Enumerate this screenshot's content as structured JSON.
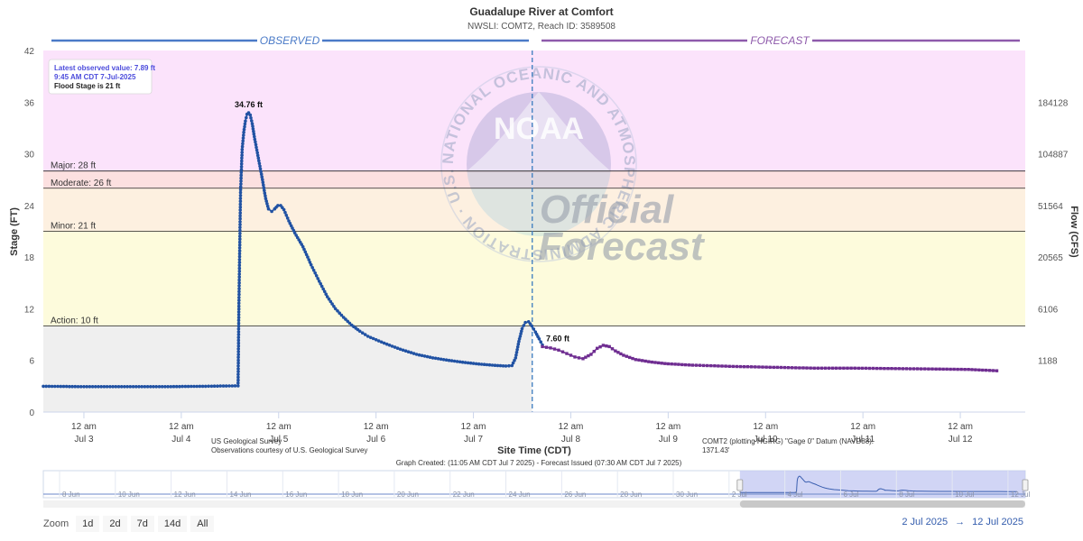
{
  "chart_data": {
    "type": "line",
    "title": "Guadalupe River at Comfort",
    "subtitle": "NWSLI: COMT2, Reach ID: 3589508",
    "ylabel": "Stage (FT)",
    "y2label": "Flow (CFS)",
    "xlabel": "Site Time (CDT)",
    "ylim": [
      0,
      42
    ],
    "xlim_hours": [
      0,
      242
    ],
    "y_ticks": [
      "0",
      "6",
      "12",
      "18",
      "24",
      "30",
      "36",
      "42"
    ],
    "y2_ticks": [
      {
        "stage": 6,
        "label": "1188"
      },
      {
        "stage": 12,
        "label": "6106"
      },
      {
        "stage": 18,
        "label": "20565"
      },
      {
        "stage": 24,
        "label": "51564"
      },
      {
        "stage": 30,
        "label": "104887"
      },
      {
        "stage": 36,
        "label": "184128"
      }
    ],
    "x_ticks": [
      {
        "hour": 10,
        "top": "12 am",
        "bottom": "Jul 3"
      },
      {
        "hour": 34,
        "top": "12 am",
        "bottom": "Jul 4"
      },
      {
        "hour": 58,
        "top": "12 am",
        "bottom": "Jul 5"
      },
      {
        "hour": 82,
        "top": "12 am",
        "bottom": "Jul 6"
      },
      {
        "hour": 106,
        "top": "12 am",
        "bottom": "Jul 7"
      },
      {
        "hour": 130,
        "top": "12 am",
        "bottom": "Jul 8"
      },
      {
        "hour": 154,
        "top": "12 am",
        "bottom": "Jul 9"
      },
      {
        "hour": 178,
        "top": "12 am",
        "bottom": "Jul 10"
      },
      {
        "hour": 202,
        "top": "12 am",
        "bottom": "Jul 11"
      },
      {
        "hour": 226,
        "top": "12 am",
        "bottom": "Jul 12"
      }
    ],
    "flood_categories": [
      {
        "name": "Major",
        "label": "Major: 28 ft",
        "stage": 28,
        "color": "#fbe3fb"
      },
      {
        "name": "Moderate",
        "label": "Moderate: 26 ft",
        "stage": 26,
        "color": "#fce0e0"
      },
      {
        "name": "Minor",
        "label": "Minor: 21 ft",
        "stage": 21,
        "color": "#fdf0e0"
      },
      {
        "name": "Action",
        "label": "Action: 10 ft",
        "stage": 10,
        "color": "#fdfbdc"
      }
    ],
    "below_action_color": "#efefef",
    "grid": false,
    "observed_label": "OBSERVED",
    "forecast_label": "FORECAST",
    "now_hour": 120.5,
    "series": [
      {
        "name": "Observed",
        "color": "#2152a3",
        "points": [
          [
            0,
            3.0
          ],
          [
            10,
            2.95
          ],
          [
            20,
            2.95
          ],
          [
            30,
            2.95
          ],
          [
            40,
            3.0
          ],
          [
            48,
            3.05
          ],
          [
            48.2,
            12.3
          ],
          [
            48.6,
            25.5
          ],
          [
            49.0,
            30.5
          ],
          [
            49.4,
            32.5
          ],
          [
            49.8,
            33.8
          ],
          [
            50.2,
            34.6
          ],
          [
            50.6,
            34.76
          ],
          [
            51.0,
            34.5
          ],
          [
            51.5,
            33.5
          ],
          [
            52,
            32.0
          ],
          [
            53,
            29.5
          ],
          [
            54,
            27.0
          ],
          [
            54.8,
            24.8
          ],
          [
            55.5,
            23.6
          ],
          [
            56.3,
            23.3
          ],
          [
            57.0,
            23.6
          ],
          [
            57.8,
            24.0
          ],
          [
            58.5,
            24.0
          ],
          [
            59.3,
            23.5
          ],
          [
            60.5,
            22.2
          ],
          [
            62,
            20.8
          ],
          [
            64,
            19.2
          ],
          [
            66,
            17.1
          ],
          [
            68,
            15.2
          ],
          [
            70,
            13.4
          ],
          [
            72,
            12.0
          ],
          [
            74,
            11.0
          ],
          [
            76,
            10.1
          ],
          [
            78,
            9.4
          ],
          [
            80,
            8.8
          ],
          [
            84,
            8.0
          ],
          [
            88,
            7.3
          ],
          [
            92,
            6.7
          ],
          [
            96,
            6.3
          ],
          [
            100,
            6.0
          ],
          [
            104,
            5.75
          ],
          [
            108,
            5.55
          ],
          [
            112,
            5.4
          ],
          [
            114,
            5.35
          ],
          [
            115.5,
            5.4
          ],
          [
            116.4,
            6.3
          ],
          [
            117.2,
            8.2
          ],
          [
            118.0,
            9.7
          ],
          [
            118.8,
            10.4
          ],
          [
            119.6,
            10.5
          ],
          [
            120.4,
            10.0
          ],
          [
            121.3,
            9.3
          ],
          [
            122.2,
            8.5
          ],
          [
            123,
            7.8
          ]
        ]
      },
      {
        "name": "Forecast",
        "color": "#6f2d91",
        "points": [
          [
            123,
            7.6
          ],
          [
            125,
            7.45
          ],
          [
            127,
            7.2
          ],
          [
            129,
            6.8
          ],
          [
            131,
            6.4
          ],
          [
            133,
            6.2
          ],
          [
            135,
            6.7
          ],
          [
            136.5,
            7.4
          ],
          [
            138,
            7.75
          ],
          [
            139.5,
            7.6
          ],
          [
            141,
            7.1
          ],
          [
            143,
            6.6
          ],
          [
            146,
            6.1
          ],
          [
            150,
            5.8
          ],
          [
            154,
            5.6
          ],
          [
            160,
            5.45
          ],
          [
            170,
            5.3
          ],
          [
            180,
            5.2
          ],
          [
            190,
            5.1
          ],
          [
            200,
            5.1
          ],
          [
            210,
            5.05
          ],
          [
            220,
            5.0
          ],
          [
            228,
            4.95
          ],
          [
            235,
            4.8
          ]
        ]
      }
    ],
    "annotations": [
      {
        "hour": 50.6,
        "stage": 34.76,
        "label": "34.76 ft"
      },
      {
        "hour": 123,
        "stage": 7.6,
        "label": "7.60 ft"
      }
    ],
    "info_box": {
      "latest": "Latest observed value: 7.89 ft",
      "time": "9:45 AM CDT 7-Jul-2025",
      "flood": "Flood Stage is 21 ft"
    },
    "observed_credit_line1": "US Geological Survey",
    "observed_credit_line2": "Observations courtesy of U.S. Geological Survey",
    "datum_line1": "COMT2 (plotting HGIRG) \"Gage 0\" Datum (NAVD88):",
    "datum_line2": "1371.43'",
    "graph_created": "Graph Created: (11:05 AM CDT Jul 7 2025) - Forecast Issued (07:30 AM CDT Jul 7 2025)",
    "watermark": {
      "logo_text": "NOAA",
      "ring_text": "NATIONAL OCEANIC AND ATMOSPHERIC ADMINISTRATION · U.S. DEPARTMENT OF COMMERCE ·",
      "official": "Official",
      "forecast": "Forecast"
    },
    "navigator": {
      "labels": [
        "8 Jun",
        "10 Jun",
        "12 Jun",
        "14 Jun",
        "16 Jun",
        "18 Jun",
        "20 Jun",
        "22 Jun",
        "24 Jun",
        "26 Jun",
        "28 Jun",
        "30 Jun",
        "2 Jul",
        "4 Jul",
        "6 Jul",
        "8 Jul",
        "10 Jul",
        "12 Jul"
      ],
      "selected_from_index": 12,
      "selected_to_index": 17
    }
  },
  "zoom": {
    "label": "Zoom",
    "buttons": [
      "1d",
      "2d",
      "7d",
      "14d",
      "All"
    ]
  },
  "range": {
    "from": "2 Jul 2025",
    "arrow": "→",
    "to": "12 Jul 2025"
  }
}
